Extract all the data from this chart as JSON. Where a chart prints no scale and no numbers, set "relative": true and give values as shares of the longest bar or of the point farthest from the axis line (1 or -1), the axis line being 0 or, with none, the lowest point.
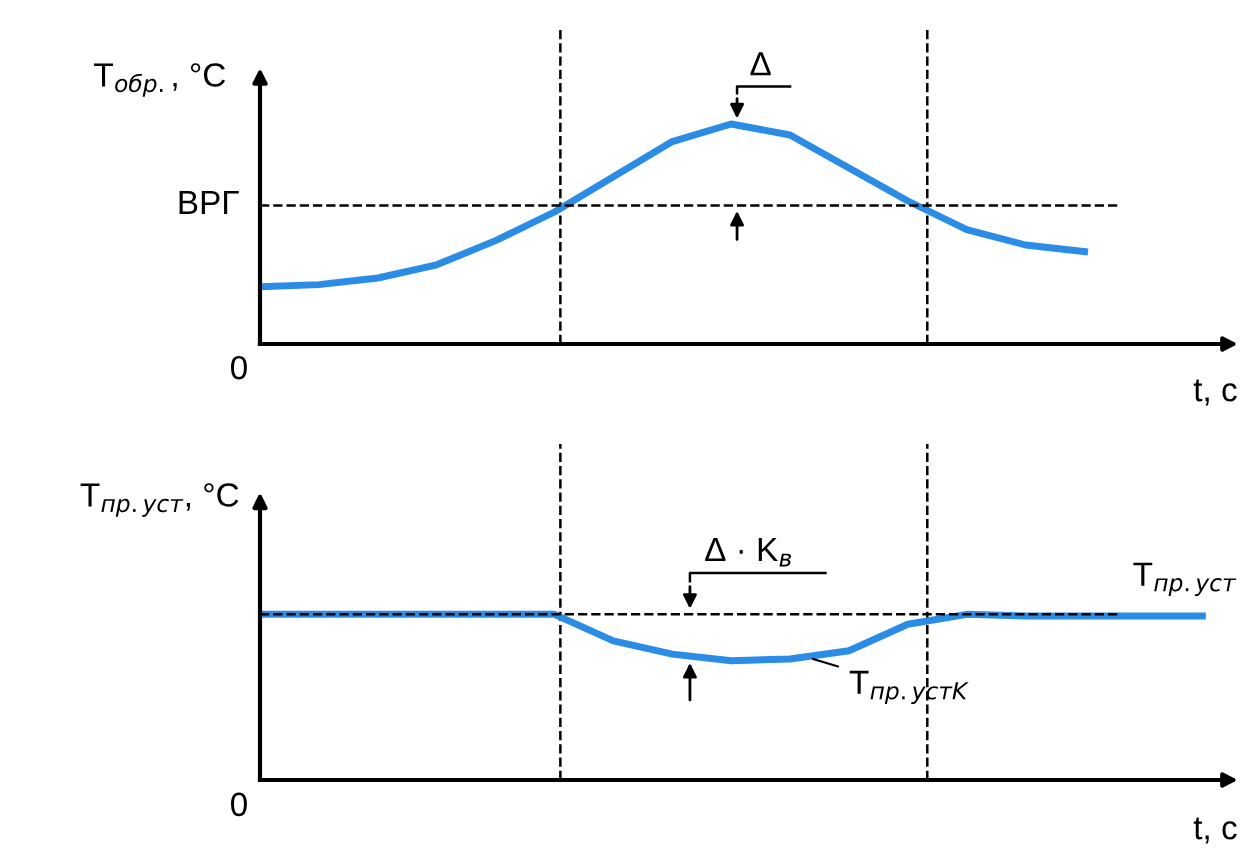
{
  "chart_data": [
    {
      "type": "line",
      "relative": true,
      "ylabel": "T$_{обр.}$, °C",
      "xlabel": "t, c",
      "categories": [
        null,
        null,
        null,
        null,
        null,
        null,
        null,
        null,
        null,
        null,
        null,
        null,
        null,
        null,
        null
      ],
      "series": [
        {
          "color": "#2b8ce6",
          "values": [
            0.26,
            0.27,
            0.3,
            0.36,
            0.47,
            0.6,
            0.76,
            0.92,
            1,
            0.95,
            0.8,
            0.65,
            0.52,
            0.45,
            0.42
          ]
        }
      ],
      "ref_lines": [
        {
          "axis": "y",
          "value": 0.63,
          "label": "ВРГ",
          "line_style": "dashed",
          "color": "#000000"
        }
      ],
      "annotations": [
        "0",
        "Δ"
      ],
      "grid": false,
      "legend": false,
      "marker": "none",
      "line_style": "solid"
    },
    {
      "type": "line",
      "relative": true,
      "ylabel": "T$_{пр.уст}$, °C",
      "xlabel": "t, c",
      "categories": [
        null,
        null,
        null,
        null,
        null,
        null,
        null,
        null,
        null,
        null,
        null,
        null,
        null,
        null,
        null,
        null,
        null
      ],
      "series": [
        {
          "name": "T$_{пр.уст}$",
          "color": "#2b8ce6",
          "values": [
            1,
            1,
            1,
            1,
            1,
            1,
            0.84,
            0.76,
            0.72,
            0.73,
            0.78,
            0.94,
            1,
            0.99,
            0.99,
            0.99,
            0.99
          ]
        }
      ],
      "ref_lines": [
        {
          "axis": "y",
          "value": 1,
          "line_style": "dashed",
          "color": "#000000"
        }
      ],
      "annotations": [
        "0",
        "Δ · K$_{в}$",
        "T$_{пр.устK}$"
      ],
      "grid": false,
      "legend": false,
      "marker": "none",
      "line_style": "solid"
    }
  ]
}
